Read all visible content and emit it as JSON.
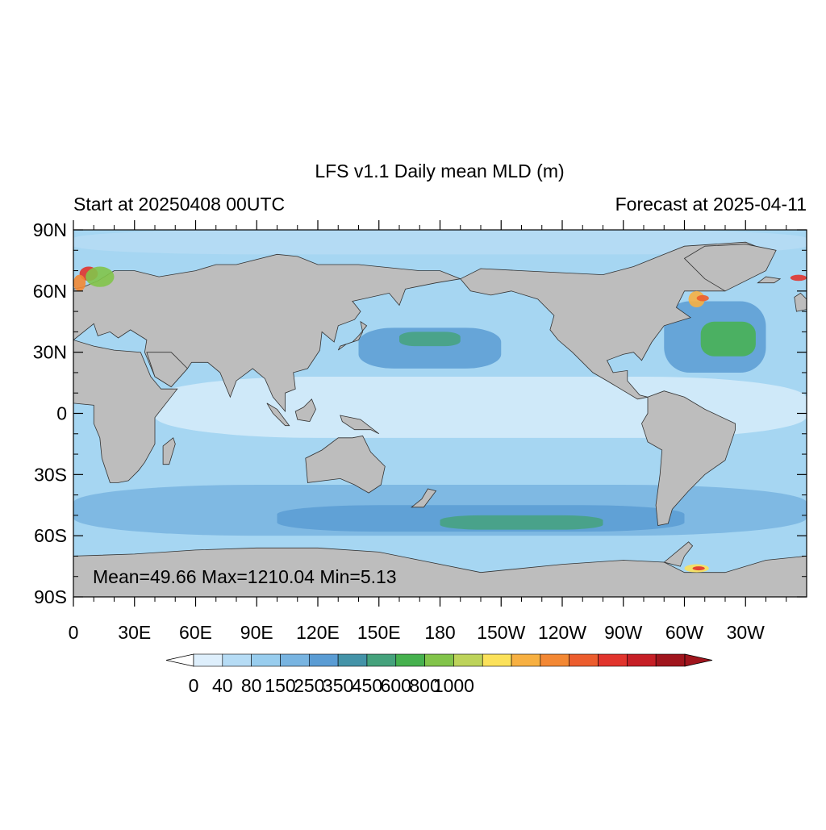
{
  "title": "LFS v1.1 Daily mean MLD (m)",
  "left_subtitle": "Start at 20250408 00UTC",
  "right_subtitle": "Forecast at 2025-04-11",
  "stats": "Mean=49.66  Max=1210.04  Min=5.13",
  "map": {
    "projection": "cylindrical equidistant",
    "center_longitude": 180,
    "lon_range": [
      0,
      360
    ],
    "lat_range": [
      -90,
      90
    ],
    "land_color": "#bdbdbd",
    "ocean_base_color": "#a6d6f2"
  },
  "y_ticks": [
    {
      "lat": 90,
      "label": "90N"
    },
    {
      "lat": 60,
      "label": "60N"
    },
    {
      "lat": 30,
      "label": "30N"
    },
    {
      "lat": 0,
      "label": "0"
    },
    {
      "lat": -30,
      "label": "30S"
    },
    {
      "lat": -60,
      "label": "60S"
    },
    {
      "lat": -90,
      "label": "90S"
    }
  ],
  "x_ticks": [
    {
      "lon": 0,
      "label": "0"
    },
    {
      "lon": 30,
      "label": "30E"
    },
    {
      "lon": 60,
      "label": "60E"
    },
    {
      "lon": 90,
      "label": "90E"
    },
    {
      "lon": 120,
      "label": "120E"
    },
    {
      "lon": 150,
      "label": "150E"
    },
    {
      "lon": 180,
      "label": "180"
    },
    {
      "lon": 210,
      "label": "150W"
    },
    {
      "lon": 240,
      "label": "120W"
    },
    {
      "lon": 270,
      "label": "90W"
    },
    {
      "lon": 300,
      "label": "60W"
    },
    {
      "lon": 330,
      "label": "30W"
    }
  ],
  "colorbar": {
    "under_color": "#ffffff",
    "over_color": "#a0151d",
    "colors": [
      "#deeffc",
      "#b6dcf5",
      "#98cdee",
      "#78b4e1",
      "#5a9cd4",
      "#4493a8",
      "#45a27c",
      "#46b14e",
      "#82c44a",
      "#bdd35a",
      "#fbe15a",
      "#f7b042",
      "#f38834",
      "#ec5d2e",
      "#e1342d",
      "#c61f26",
      "#a0151d"
    ],
    "labels": [
      {
        "index": 0,
        "text": "0"
      },
      {
        "index": 2,
        "text": "40"
      },
      {
        "index": 4,
        "text": "80"
      },
      {
        "index": 6,
        "text": "150"
      },
      {
        "index": 8,
        "text": "250"
      },
      {
        "index": 10,
        "text": "350"
      },
      {
        "index": 12,
        "text": "450"
      },
      {
        "index": 14,
        "text": "600"
      },
      {
        "index": 16,
        "text": "800"
      },
      {
        "index": 18,
        "text": "1000"
      }
    ]
  },
  "fields": [
    {
      "name": "tropical-low",
      "color": "#d6ecfa",
      "lon": [
        40,
        360
      ],
      "lat": [
        -12,
        18
      ]
    },
    {
      "name": "np-subtropic",
      "color": "#5a9cd4",
      "lon": [
        140,
        210
      ],
      "lat": [
        22,
        42
      ]
    },
    {
      "name": "np-green",
      "color": "#45a27c",
      "lon": [
        160,
        190
      ],
      "lat": [
        33,
        40
      ]
    },
    {
      "name": "na-deep",
      "color": "#5a9cd4",
      "lon": [
        290,
        340
      ],
      "lat": [
        20,
        55
      ]
    },
    {
      "name": "na-green",
      "color": "#46b14e",
      "lon": [
        308,
        335
      ],
      "lat": [
        28,
        45
      ]
    },
    {
      "name": "so-band",
      "color": "#78b4e1",
      "lon": [
        0,
        360
      ],
      "lat": [
        -60,
        -35
      ]
    },
    {
      "name": "so-deep",
      "color": "#5a9cd4",
      "lon": [
        100,
        300
      ],
      "lat": [
        -58,
        -45
      ]
    },
    {
      "name": "so-green",
      "color": "#45a27c",
      "lon": [
        180,
        260
      ],
      "lat": [
        -57,
        -50
      ]
    },
    {
      "name": "arctic",
      "color": "#b6dcf5",
      "lon": [
        0,
        360
      ],
      "lat": [
        78,
        90
      ]
    }
  ],
  "land": [
    {
      "name": "antarctica",
      "points": [
        [
          0,
          -70
        ],
        [
          30,
          -69
        ],
        [
          60,
          -67
        ],
        [
          90,
          -66
        ],
        [
          120,
          -66
        ],
        [
          150,
          -68
        ],
        [
          170,
          -72
        ],
        [
          200,
          -78
        ],
        [
          240,
          -74
        ],
        [
          270,
          -72
        ],
        [
          290,
          -73
        ],
        [
          300,
          -78
        ],
        [
          320,
          -78
        ],
        [
          340,
          -72
        ],
        [
          360,
          -70
        ],
        [
          360,
          -90
        ],
        [
          0,
          -90
        ]
      ]
    },
    {
      "name": "antarctic-peninsula",
      "points": [
        [
          290,
          -73
        ],
        [
          296,
          -68
        ],
        [
          302,
          -63
        ],
        [
          304,
          -65
        ],
        [
          300,
          -70
        ],
        [
          298,
          -75
        ]
      ]
    },
    {
      "name": "africa",
      "points": [
        [
          0,
          5
        ],
        [
          10,
          4
        ],
        [
          10,
          -5
        ],
        [
          13,
          -12
        ],
        [
          14,
          -22
        ],
        [
          18,
          -34
        ],
        [
          22,
          -34
        ],
        [
          27,
          -33
        ],
        [
          32,
          -28
        ],
        [
          35,
          -24
        ],
        [
          40,
          -15
        ],
        [
          40,
          -10
        ],
        [
          40,
          -2
        ],
        [
          51,
          12
        ],
        [
          43,
          12
        ],
        [
          38,
          18
        ],
        [
          33,
          30
        ],
        [
          20,
          31
        ],
        [
          10,
          33
        ],
        [
          0,
          36
        ],
        [
          0,
          5
        ]
      ]
    },
    {
      "name": "madagascar",
      "points": [
        [
          44,
          -25
        ],
        [
          47,
          -25
        ],
        [
          50,
          -15
        ],
        [
          49,
          -12
        ],
        [
          44,
          -16
        ]
      ]
    },
    {
      "name": "eurasia",
      "points": [
        [
          0,
          36
        ],
        [
          10,
          44
        ],
        [
          12,
          38
        ],
        [
          18,
          40
        ],
        [
          22,
          37
        ],
        [
          28,
          41
        ],
        [
          36,
          36
        ],
        [
          35,
          30
        ],
        [
          40,
          18
        ],
        [
          48,
          13
        ],
        [
          56,
          22
        ],
        [
          58,
          25
        ],
        [
          66,
          25
        ],
        [
          72,
          20
        ],
        [
          77,
          8
        ],
        [
          80,
          16
        ],
        [
          88,
          22
        ],
        [
          94,
          17
        ],
        [
          98,
          8
        ],
        [
          104,
          1
        ],
        [
          104,
          10
        ],
        [
          109,
          12
        ],
        [
          108,
          20
        ],
        [
          115,
          22
        ],
        [
          121,
          31
        ],
        [
          122,
          40
        ],
        [
          128,
          35
        ],
        [
          130,
          43
        ],
        [
          138,
          46
        ],
        [
          141,
          50
        ],
        [
          137,
          55
        ],
        [
          155,
          59
        ],
        [
          160,
          53
        ],
        [
          163,
          61
        ],
        [
          178,
          64
        ],
        [
          190,
          66
        ],
        [
          180,
          70
        ],
        [
          170,
          70
        ],
        [
          140,
          73
        ],
        [
          120,
          73
        ],
        [
          110,
          77
        ],
        [
          100,
          78
        ],
        [
          80,
          73
        ],
        [
          70,
          73
        ],
        [
          60,
          70
        ],
        [
          42,
          67
        ],
        [
          30,
          70
        ],
        [
          20,
          70
        ],
        [
          12,
          65
        ],
        [
          5,
          62
        ],
        [
          0,
          61
        ]
      ]
    },
    {
      "name": "uk",
      "points": [
        [
          355,
          50
        ],
        [
          360,
          51
        ],
        [
          360,
          56
        ],
        [
          357,
          59
        ],
        [
          354,
          57
        ]
      ]
    },
    {
      "name": "arabia-fill",
      "points": [
        [
          36,
          30
        ],
        [
          40,
          18
        ],
        [
          48,
          13
        ],
        [
          56,
          22
        ],
        [
          50,
          28
        ],
        [
          48,
          30
        ]
      ]
    },
    {
      "name": "japan",
      "points": [
        [
          130,
          31
        ],
        [
          134,
          34
        ],
        [
          140,
          36
        ],
        [
          142,
          40
        ],
        [
          141,
          45
        ],
        [
          144,
          43
        ],
        [
          140,
          38
        ],
        [
          137,
          35
        ],
        [
          131,
          33
        ]
      ]
    },
    {
      "name": "borneo",
      "points": [
        [
          109,
          1
        ],
        [
          113,
          3
        ],
        [
          117,
          7
        ],
        [
          119,
          2
        ],
        [
          116,
          -4
        ],
        [
          110,
          -3
        ]
      ]
    },
    {
      "name": "sumatra",
      "points": [
        [
          95,
          5
        ],
        [
          100,
          2
        ],
        [
          106,
          -6
        ],
        [
          104,
          -6
        ],
        [
          98,
          0
        ]
      ]
    },
    {
      "name": "new-guinea",
      "points": [
        [
          131,
          -1
        ],
        [
          141,
          -3
        ],
        [
          150,
          -10
        ],
        [
          146,
          -8
        ],
        [
          138,
          -8
        ],
        [
          132,
          -4
        ]
      ]
    },
    {
      "name": "australia",
      "points": [
        [
          114,
          -22
        ],
        [
          122,
          -18
        ],
        [
          130,
          -12
        ],
        [
          137,
          -12
        ],
        [
          142,
          -11
        ],
        [
          146,
          -19
        ],
        [
          153,
          -26
        ],
        [
          151,
          -35
        ],
        [
          145,
          -39
        ],
        [
          138,
          -35
        ],
        [
          131,
          -32
        ],
        [
          115,
          -34
        ]
      ]
    },
    {
      "name": "new-zealand",
      "points": [
        [
          166,
          -46
        ],
        [
          171,
          -42
        ],
        [
          174,
          -37
        ],
        [
          178,
          -38
        ],
        [
          172,
          -46
        ]
      ]
    },
    {
      "name": "north-america",
      "points": [
        [
          190,
          66
        ],
        [
          200,
          71
        ],
        [
          220,
          70
        ],
        [
          240,
          69
        ],
        [
          260,
          68
        ],
        [
          275,
          72
        ],
        [
          290,
          78
        ],
        [
          300,
          82
        ],
        [
          330,
          84
        ],
        [
          340,
          80
        ],
        [
          330,
          70
        ],
        [
          320,
          60
        ],
        [
          300,
          60
        ],
        [
          296,
          52
        ],
        [
          303,
          47
        ],
        [
          290,
          43
        ],
        [
          284,
          35
        ],
        [
          279,
          26
        ],
        [
          275,
          30
        ],
        [
          270,
          29
        ],
        [
          262,
          26
        ],
        [
          265,
          20
        ],
        [
          272,
          21
        ],
        [
          272,
          16
        ],
        [
          278,
          9
        ],
        [
          282,
          8
        ],
        [
          277,
          7
        ],
        [
          262,
          16
        ],
        [
          255,
          20
        ],
        [
          245,
          30
        ],
        [
          238,
          36
        ],
        [
          234,
          41
        ],
        [
          236,
          48
        ],
        [
          228,
          56
        ],
        [
          215,
          60
        ],
        [
          205,
          58
        ],
        [
          195,
          60
        ]
      ]
    },
    {
      "name": "greenland",
      "points": [
        [
          300,
          76
        ],
        [
          310,
          82
        ],
        [
          330,
          83
        ],
        [
          345,
          80
        ],
        [
          340,
          70
        ],
        [
          320,
          60
        ],
        [
          310,
          66
        ]
      ]
    },
    {
      "name": "south-america",
      "points": [
        [
          282,
          8
        ],
        [
          290,
          11
        ],
        [
          300,
          8
        ],
        [
          310,
          2
        ],
        [
          325,
          -5
        ],
        [
          325,
          -8
        ],
        [
          320,
          -23
        ],
        [
          310,
          -30
        ],
        [
          302,
          -38
        ],
        [
          294,
          -47
        ],
        [
          292,
          -54
        ],
        [
          287,
          -55
        ],
        [
          286,
          -45
        ],
        [
          288,
          -30
        ],
        [
          289,
          -18
        ],
        [
          282,
          -14
        ],
        [
          279,
          -5
        ],
        [
          282,
          0
        ]
      ]
    },
    {
      "name": "iceland",
      "points": [
        [
          336,
          64
        ],
        [
          344,
          64
        ],
        [
          347,
          66
        ],
        [
          340,
          67
        ]
      ]
    }
  ],
  "hotspots": [
    {
      "name": "nordic-red",
      "color": "#e1342d",
      "lon": [
        3,
        12
      ],
      "lat": [
        65,
        72
      ]
    },
    {
      "name": "nordic-orange",
      "color": "#f38834",
      "lon": [
        0,
        6
      ],
      "lat": [
        60,
        68
      ]
    },
    {
      "name": "nordic-green",
      "color": "#82c44a",
      "lon": [
        6,
        20
      ],
      "lat": [
        62,
        72
      ]
    },
    {
      "name": "labrador-orange",
      "color": "#f7b042",
      "lon": [
        302,
        310
      ],
      "lat": [
        52,
        60
      ]
    },
    {
      "name": "labrador-red",
      "color": "#ec5d2e",
      "lon": [
        306,
        312
      ],
      "lat": [
        55,
        58
      ]
    },
    {
      "name": "weddell-yellow",
      "color": "#fbe15a",
      "lon": [
        300,
        312
      ],
      "lat": [
        -78,
        -74
      ]
    },
    {
      "name": "weddell-red",
      "color": "#e1342d",
      "lon": [
        304,
        310
      ],
      "lat": [
        -77,
        -75
      ]
    },
    {
      "name": "irminger-red",
      "color": "#e1342d",
      "lon": [
        352,
        360
      ],
      "lat": [
        65,
        68
      ]
    }
  ]
}
